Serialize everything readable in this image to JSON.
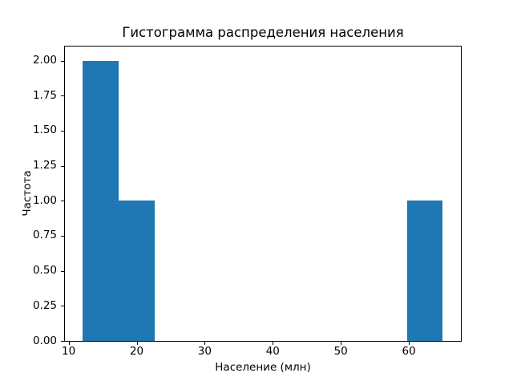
{
  "chart_data": {
    "type": "bar",
    "chart_kind": "histogram",
    "title": "Гистограмма распределения населения",
    "xlabel": "Население (млн)",
    "ylabel": "Частота",
    "bin_edges": [
      12.1,
      17.39,
      22.68,
      27.97,
      33.26,
      38.55,
      43.84,
      49.13,
      54.42,
      59.71,
      65.0
    ],
    "counts": [
      2,
      1,
      0,
      0,
      0,
      0,
      0,
      0,
      0,
      1
    ],
    "xlim": [
      9.46,
      67.65
    ],
    "ylim": [
      0,
      2.1
    ],
    "x_tick_values": [
      10,
      20,
      30,
      40,
      50,
      60
    ],
    "x_tick_labels": [
      "10",
      "20",
      "30",
      "40",
      "50",
      "60"
    ],
    "y_tick_values": [
      0,
      0.25,
      0.5,
      0.75,
      1.0,
      1.25,
      1.5,
      1.75,
      2.0
    ],
    "y_tick_labels": [
      "0.00",
      "0.25",
      "0.50",
      "0.75",
      "1.00",
      "1.25",
      "1.50",
      "1.75",
      "2.00"
    ],
    "bar_color": "#1f77b4",
    "background_color": "#ffffff",
    "spine_color": "#000000",
    "grid": false,
    "legend": false
  }
}
